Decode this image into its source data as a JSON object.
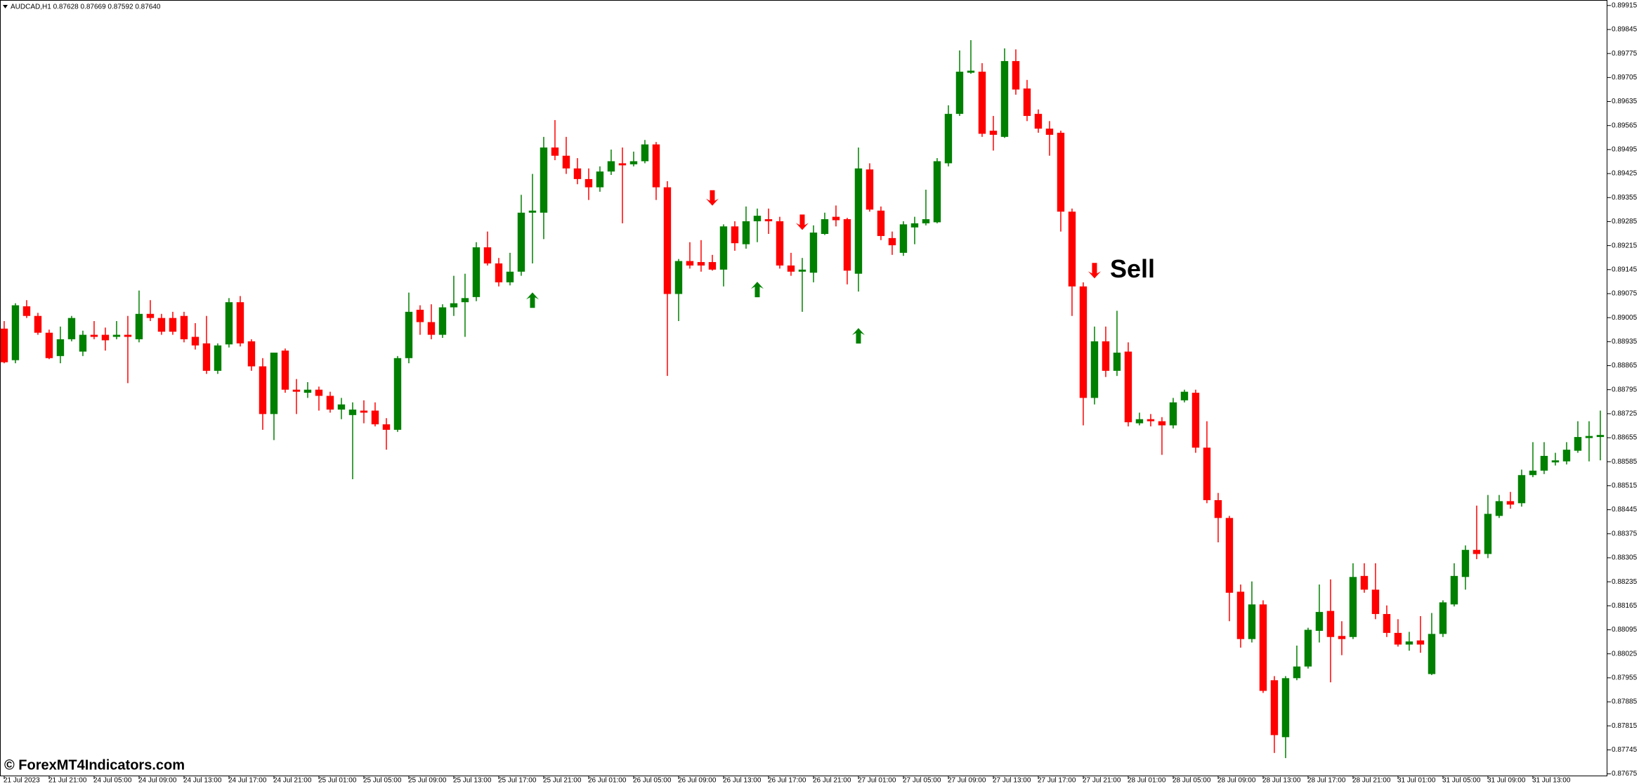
{
  "chart_data": {
    "type": "candlestick",
    "title": "AUDCAD,H1  0.87628 0.87669 0.87592 0.87640",
    "up_color": "#008000",
    "down_color": "#ff0000",
    "ylim": [
      0.87668,
      0.89931
    ],
    "yticks": [
      0.89915,
      0.89845,
      0.89775,
      0.89705,
      0.89635,
      0.89565,
      0.89495,
      0.89425,
      0.89355,
      0.89285,
      0.89215,
      0.89145,
      0.89075,
      0.89005,
      0.88935,
      0.88865,
      0.88795,
      0.88725,
      0.88655,
      0.88585,
      0.88515,
      0.88445,
      0.88375,
      0.88305,
      0.88235,
      0.88165,
      0.88095,
      0.88025,
      0.87955,
      0.87885,
      0.87815,
      0.87745,
      0.87675
    ],
    "categories": [
      "21 Jul 2023",
      null,
      null,
      null,
      "21 Jul 21:00",
      null,
      null,
      null,
      "24 Jul 05:00",
      null,
      null,
      null,
      "24 Jul 09:00",
      null,
      null,
      null,
      "24 Jul 13:00",
      null,
      null,
      null,
      "24 Jul 17:00",
      null,
      null,
      null,
      "24 Jul 21:00",
      null,
      null,
      null,
      "25 Jul 01:00",
      null,
      null,
      null,
      "25 Jul 05:00",
      null,
      null,
      null,
      "25 Jul 09:00",
      null,
      null,
      null,
      "25 Jul 13:00",
      null,
      null,
      null,
      "25 Jul 17:00",
      null,
      null,
      null,
      "25 Jul 21:00",
      null,
      null,
      null,
      "26 Jul 01:00",
      null,
      null,
      null,
      "26 Jul 05:00",
      null,
      null,
      null,
      "26 Jul 09:00",
      null,
      null,
      null,
      "26 Jul 13:00",
      null,
      null,
      null,
      "26 Jul 17:00",
      null,
      null,
      null,
      "26 Jul 21:00",
      null,
      null,
      null,
      "27 Jul 01:00",
      null,
      null,
      null,
      "27 Jul 05:00",
      null,
      null,
      null,
      "27 Jul 09:00",
      null,
      null,
      null,
      "27 Jul 13:00",
      null,
      null,
      null,
      "27 Jul 17:00",
      null,
      null,
      null,
      "27 Jul 21:00",
      null,
      null,
      null,
      "28 Jul 01:00",
      null,
      null,
      null,
      "28 Jul 05:00",
      null,
      null,
      null,
      "28 Jul 09:00",
      null,
      null,
      null,
      "28 Jul 13:00",
      null,
      null,
      null,
      "28 Jul 17:00",
      null,
      null,
      null,
      "28 Jul 21:00",
      null,
      null,
      null,
      "31 Jul 01:00",
      null,
      null,
      null,
      "31 Jul 05:00",
      null,
      null,
      null,
      "31 Jul 09:00",
      null,
      null,
      null,
      "31 Jul 13:00",
      null,
      null,
      null,
      null,
      null,
      null
    ],
    "values": [
      [
        0.88973,
        0.88995,
        0.88872,
        0.88875
      ],
      [
        0.88881,
        0.89047,
        0.88872,
        0.89041
      ],
      [
        0.89038,
        0.89056,
        0.89004,
        0.8901
      ],
      [
        0.8901,
        0.89019,
        0.88955,
        0.88961
      ],
      [
        0.88961,
        0.8897,
        0.88884,
        0.88887
      ],
      [
        0.88893,
        0.88979,
        0.88872,
        0.88942
      ],
      [
        0.88942,
        0.8901,
        0.88936,
        0.89004
      ],
      [
        0.88906,
        0.88967,
        0.88893,
        0.88955
      ],
      [
        0.88955,
        0.88995,
        0.88942,
        0.88949
      ],
      [
        0.88955,
        0.88976,
        0.88909,
        0.88939
      ],
      [
        0.88949,
        0.88995,
        0.88942,
        0.88955
      ],
      [
        0.88955,
        0.8901,
        0.88814,
        0.88949
      ],
      [
        0.88942,
        0.89084,
        0.88933,
        0.89016
      ],
      [
        0.89016,
        0.89056,
        0.88995,
        0.89004
      ],
      [
        0.89004,
        0.89016,
        0.88955,
        0.88964
      ],
      [
        0.89004,
        0.89022,
        0.88955,
        0.88964
      ],
      [
        0.8901,
        0.89022,
        0.88933,
        0.88942
      ],
      [
        0.88949,
        0.88989,
        0.88912,
        0.88924
      ],
      [
        0.8893,
        0.8901,
        0.88841,
        0.8885
      ],
      [
        0.8885,
        0.8893,
        0.88841,
        0.88924
      ],
      [
        0.88927,
        0.89062,
        0.88918,
        0.8905
      ],
      [
        0.8905,
        0.89068,
        0.88921,
        0.8893
      ],
      [
        0.88936,
        0.88942,
        0.8885,
        0.88863
      ],
      [
        0.88863,
        0.88887,
        0.88678,
        0.88724
      ],
      [
        0.88724,
        0.88903,
        0.88648,
        0.88903
      ],
      [
        0.88909,
        0.88915,
        0.88786,
        0.88795
      ],
      [
        0.88795,
        0.88826,
        0.88724,
        0.88789
      ],
      [
        0.88786,
        0.88817,
        0.88771,
        0.88795
      ],
      [
        0.88795,
        0.88804,
        0.88734,
        0.88777
      ],
      [
        0.88777,
        0.88789,
        0.88728,
        0.88737
      ],
      [
        0.88737,
        0.88771,
        0.88709,
        0.88752
      ],
      [
        0.88721,
        0.88758,
        0.88534,
        0.88737
      ],
      [
        0.88734,
        0.88764,
        0.88697,
        0.88728
      ],
      [
        0.88734,
        0.88758,
        0.88688,
        0.88694
      ],
      [
        0.88694,
        0.88712,
        0.8862,
        0.88678
      ],
      [
        0.88678,
        0.88893,
        0.88672,
        0.88887
      ],
      [
        0.88887,
        0.89078,
        0.88872,
        0.89022
      ],
      [
        0.89028,
        0.89041,
        0.88955,
        0.88992
      ],
      [
        0.88992,
        0.89044,
        0.88942,
        0.88955
      ],
      [
        0.88955,
        0.89044,
        0.88946,
        0.89035
      ],
      [
        0.89035,
        0.89127,
        0.8901,
        0.89047
      ],
      [
        0.8905,
        0.89133,
        0.88949,
        0.89062
      ],
      [
        0.89065,
        0.89225,
        0.89053,
        0.8921
      ],
      [
        0.8921,
        0.89256,
        0.89157,
        0.89163
      ],
      [
        0.89163,
        0.89179,
        0.89096,
        0.89108
      ],
      [
        0.89108,
        0.89194,
        0.89099,
        0.89139
      ],
      [
        0.89139,
        0.89363,
        0.89127,
        0.89311
      ],
      [
        0.89311,
        0.89424,
        0.89163,
        0.89317
      ],
      [
        0.89311,
        0.89532,
        0.89234,
        0.89501
      ],
      [
        0.89501,
        0.89581,
        0.89464,
        0.89477
      ],
      [
        0.89477,
        0.89532,
        0.89424,
        0.8944
      ],
      [
        0.8944,
        0.8947,
        0.89394,
        0.89409
      ],
      [
        0.89409,
        0.8944,
        0.89348,
        0.89385
      ],
      [
        0.89385,
        0.89446,
        0.89372,
        0.89431
      ],
      [
        0.89431,
        0.89495,
        0.89421,
        0.89461
      ],
      [
        0.89455,
        0.89501,
        0.8928,
        0.89449
      ],
      [
        0.89452,
        0.89489,
        0.89446,
        0.89461
      ],
      [
        0.89461,
        0.89523,
        0.89455,
        0.8951
      ],
      [
        0.8951,
        0.89517,
        0.89348,
        0.89385
      ],
      [
        0.89385,
        0.89403,
        0.88835,
        0.89074
      ],
      [
        0.89074,
        0.89176,
        0.88995,
        0.8917
      ],
      [
        0.8917,
        0.89225,
        0.89148,
        0.89157
      ],
      [
        0.89167,
        0.89231,
        0.89139,
        0.89157
      ],
      [
        0.89167,
        0.89188,
        0.89142,
        0.89145
      ],
      [
        0.89145,
        0.89277,
        0.89096,
        0.89271
      ],
      [
        0.89271,
        0.89286,
        0.892,
        0.89222
      ],
      [
        0.89219,
        0.89329,
        0.89206,
        0.89286
      ],
      [
        0.89286,
        0.89323,
        0.89225,
        0.89302
      ],
      [
        0.89292,
        0.89323,
        0.89249,
        0.89286
      ],
      [
        0.89286,
        0.89299,
        0.89148,
        0.89157
      ],
      [
        0.89157,
        0.89194,
        0.89127,
        0.89139
      ],
      [
        0.89139,
        0.89179,
        0.89022,
        0.89145
      ],
      [
        0.89136,
        0.89274,
        0.89108,
        0.89253
      ],
      [
        0.89249,
        0.89311,
        0.89246,
        0.89292
      ],
      [
        0.89299,
        0.89332,
        0.89271,
        0.89289
      ],
      [
        0.89292,
        0.89296,
        0.89102,
        0.89142
      ],
      [
        0.89133,
        0.89501,
        0.89081,
        0.8944
      ],
      [
        0.89437,
        0.89455,
        0.89314,
        0.8932
      ],
      [
        0.89317,
        0.89329,
        0.89231,
        0.89243
      ],
      [
        0.89237,
        0.89256,
        0.89188,
        0.89216
      ],
      [
        0.89194,
        0.89286,
        0.89185,
        0.89277
      ],
      [
        0.89268,
        0.89299,
        0.89219,
        0.8928
      ],
      [
        0.8928,
        0.89378,
        0.89274,
        0.89292
      ],
      [
        0.89283,
        0.8947,
        0.8928,
        0.89461
      ],
      [
        0.89455,
        0.89624,
        0.89446,
        0.89599
      ],
      [
        0.89599,
        0.89784,
        0.89593,
        0.89722
      ],
      [
        0.89719,
        0.89814,
        0.89716,
        0.89725
      ],
      [
        0.89722,
        0.89747,
        0.89532,
        0.89541
      ],
      [
        0.8955,
        0.89593,
        0.89492,
        0.89538
      ],
      [
        0.89532,
        0.8979,
        0.89529,
        0.89753
      ],
      [
        0.89753,
        0.89787,
        0.89655,
        0.8967
      ],
      [
        0.89673,
        0.89698,
        0.89578,
        0.89593
      ],
      [
        0.89599,
        0.89612,
        0.89544,
        0.89556
      ],
      [
        0.89556,
        0.89578,
        0.89477,
        0.89538
      ],
      [
        0.89544,
        0.8955,
        0.89256,
        0.89314
      ],
      [
        0.89314,
        0.89323,
        0.8901,
        0.89096
      ],
      [
        0.89096,
        0.89108,
        0.88691,
        0.88771
      ],
      [
        0.88771,
        0.88979,
        0.88752,
        0.88936
      ],
      [
        0.88936,
        0.88979,
        0.88832,
        0.8885
      ],
      [
        0.8885,
        0.89025,
        0.88835,
        0.88903
      ],
      [
        0.88906,
        0.88933,
        0.88688,
        0.887
      ],
      [
        0.88697,
        0.88728,
        0.88691,
        0.88709
      ],
      [
        0.88709,
        0.88724,
        0.88688,
        0.88703
      ],
      [
        0.88703,
        0.88715,
        0.88605,
        0.88691
      ],
      [
        0.88691,
        0.88771,
        0.88682,
        0.88758
      ],
      [
        0.88764,
        0.88795,
        0.88758,
        0.88789
      ],
      [
        0.88786,
        0.88795,
        0.88611,
        0.88626
      ],
      [
        0.88626,
        0.88703,
        0.88464,
        0.88473
      ],
      [
        0.88473,
        0.88494,
        0.8835,
        0.88421
      ],
      [
        0.88421,
        0.88427,
        0.8812,
        0.88203
      ],
      [
        0.88206,
        0.88227,
        0.88043,
        0.88068
      ],
      [
        0.88068,
        0.88236,
        0.88058,
        0.88169
      ],
      [
        0.88169,
        0.88181,
        0.87911,
        0.87917
      ],
      [
        0.87948,
        0.8796,
        0.87736,
        0.87788
      ],
      [
        0.87782,
        0.8796,
        0.87721,
        0.87954
      ],
      [
        0.87954,
        0.88049,
        0.87948,
        0.87988
      ],
      [
        0.87988,
        0.88101,
        0.87982,
        0.88095
      ],
      [
        0.88092,
        0.88227,
        0.88058,
        0.88147
      ],
      [
        0.8815,
        0.88242,
        0.87942,
        0.88074
      ],
      [
        0.88077,
        0.8812,
        0.88021,
        0.88068
      ],
      [
        0.88074,
        0.88289,
        0.88068,
        0.88249
      ],
      [
        0.88252,
        0.88289,
        0.88203,
        0.88212
      ],
      [
        0.88212,
        0.88289,
        0.88126,
        0.88141
      ],
      [
        0.88141,
        0.88166,
        0.88074,
        0.88086
      ],
      [
        0.88086,
        0.88126,
        0.88046,
        0.88052
      ],
      [
        0.88052,
        0.88089,
        0.88034,
        0.88061
      ],
      [
        0.88064,
        0.88135,
        0.88028,
        0.88052
      ],
      [
        0.87966,
        0.88144,
        0.87963,
        0.88083
      ],
      [
        0.88083,
        0.88181,
        0.88074,
        0.88175
      ],
      [
        0.88169,
        0.88289,
        0.88163,
        0.88252
      ],
      [
        0.88249,
        0.88341,
        0.88212,
        0.88328
      ],
      [
        0.88328,
        0.88457,
        0.88301,
        0.88316
      ],
      [
        0.88316,
        0.88488,
        0.88304,
        0.88433
      ],
      [
        0.88427,
        0.88488,
        0.88421,
        0.8847
      ],
      [
        0.8847,
        0.88497,
        0.88448,
        0.8846
      ],
      [
        0.88464,
        0.88562,
        0.88454,
        0.88546
      ],
      [
        0.88546,
        0.88642,
        0.8854,
        0.88559
      ],
      [
        0.88559,
        0.88642,
        0.88549,
        0.88602
      ],
      [
        0.88583,
        0.88611,
        0.88574,
        0.88589
      ],
      [
        0.88586,
        0.88642,
        0.88577,
        0.8862
      ],
      [
        0.88617,
        0.88703,
        0.88611,
        0.88657
      ],
      [
        0.88654,
        0.88703,
        0.88586,
        0.8866
      ],
      [
        0.88657,
        0.88734,
        0.88589,
        0.88663
      ]
    ],
    "buy_signals": {
      "color": "#008000",
      "values": [
        null,
        null,
        null,
        null,
        null,
        null,
        null,
        null,
        null,
        null,
        null,
        null,
        null,
        null,
        null,
        null,
        null,
        null,
        null,
        null,
        null,
        null,
        null,
        null,
        null,
        null,
        null,
        null,
        null,
        null,
        null,
        null,
        null,
        null,
        null,
        null,
        null,
        null,
        null,
        null,
        null,
        null,
        null,
        null,
        null,
        null,
        null,
        0.89056,
        null,
        null,
        null,
        null,
        null,
        null,
        null,
        null,
        null,
        null,
        null,
        null,
        null,
        null,
        null,
        null,
        null,
        null,
        null,
        0.89087,
        null,
        null,
        null,
        null,
        null,
        null,
        null,
        null,
        0.88952,
        null,
        null,
        null,
        null,
        null,
        null,
        null,
        null,
        null,
        null,
        null,
        null,
        null,
        null,
        null,
        null,
        null,
        null,
        null,
        null,
        null,
        null,
        null,
        null,
        null,
        null,
        null,
        null,
        null,
        null,
        null,
        null,
        null,
        null,
        null,
        null,
        null,
        null,
        null,
        null,
        null,
        null,
        null,
        null,
        null,
        null,
        null,
        null,
        null,
        null,
        null,
        null,
        null,
        null,
        null,
        null,
        null,
        null,
        null,
        null,
        null,
        null,
        null,
        null,
        null
      ]
    },
    "sell_signals": {
      "color": "#ff0000",
      "annotation": "Sell",
      "values": [
        null,
        null,
        null,
        null,
        null,
        null,
        null,
        null,
        null,
        null,
        null,
        null,
        null,
        null,
        null,
        null,
        null,
        null,
        null,
        null,
        null,
        null,
        null,
        null,
        null,
        null,
        null,
        null,
        null,
        null,
        null,
        null,
        null,
        null,
        null,
        null,
        null,
        null,
        null,
        null,
        null,
        null,
        null,
        null,
        null,
        null,
        null,
        null,
        null,
        null,
        null,
        null,
        null,
        null,
        null,
        null,
        null,
        null,
        null,
        null,
        null,
        null,
        null,
        0.89354,
        null,
        null,
        null,
        null,
        null,
        null,
        null,
        0.89283,
        null,
        null,
        null,
        null,
        null,
        null,
        null,
        null,
        null,
        null,
        null,
        null,
        null,
        null,
        null,
        null,
        null,
        null,
        null,
        null,
        null,
        null,
        null,
        null,
        null,
        0.89142,
        null,
        null,
        null,
        null,
        null,
        null,
        null,
        null,
        null,
        null,
        null,
        null,
        null,
        null,
        null,
        null,
        null,
        null,
        null,
        null,
        null,
        null,
        null,
        null,
        null,
        null,
        null,
        null,
        null,
        null,
        null,
        null,
        null,
        null,
        null,
        null,
        null,
        null,
        null,
        null,
        null,
        null,
        null
      ]
    }
  },
  "watermark": "© ForexMT4Indicators.com"
}
